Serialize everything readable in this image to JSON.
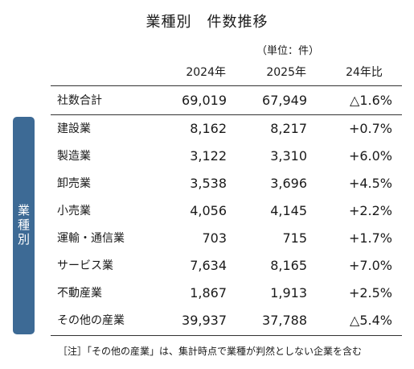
{
  "title": "業種別　件数推移",
  "unit_note": "（単位：件）",
  "side_label": "業種別",
  "columns": {
    "y2024": "2024年",
    "y2025": "2025年",
    "ratio": "24年比"
  },
  "rows": [
    {
      "name": "社数合計",
      "v2024": "69,019",
      "v2025": "67,949",
      "ratio": "△1.6%"
    },
    {
      "name": "建設業",
      "v2024": "8,162",
      "v2025": "8,217",
      "ratio": "+0.7%"
    },
    {
      "name": "製造業",
      "v2024": "3,122",
      "v2025": "3,310",
      "ratio": "+6.0%"
    },
    {
      "name": "卸売業",
      "v2024": "3,538",
      "v2025": "3,696",
      "ratio": "+4.5%"
    },
    {
      "name": "小売業",
      "v2024": "4,056",
      "v2025": "4,145",
      "ratio": "+2.2%"
    },
    {
      "name": "運輸・通信業",
      "v2024": "703",
      "v2025": "715",
      "ratio": "+1.7%"
    },
    {
      "name": "サービス業",
      "v2024": "7,634",
      "v2025": "8,165",
      "ratio": "+7.0%"
    },
    {
      "name": "不動産業",
      "v2024": "1,867",
      "v2025": "1,913",
      "ratio": "+2.5%"
    },
    {
      "name": "その他の産業",
      "v2024": "39,937",
      "v2025": "37,788",
      "ratio": "△5.4%"
    }
  ],
  "footnote": "［注］「その他の産業」は、集計時点で業種が判然としない企業を含む",
  "colors": {
    "side_label_bg": "#3d6a95",
    "rule": "#333333"
  }
}
